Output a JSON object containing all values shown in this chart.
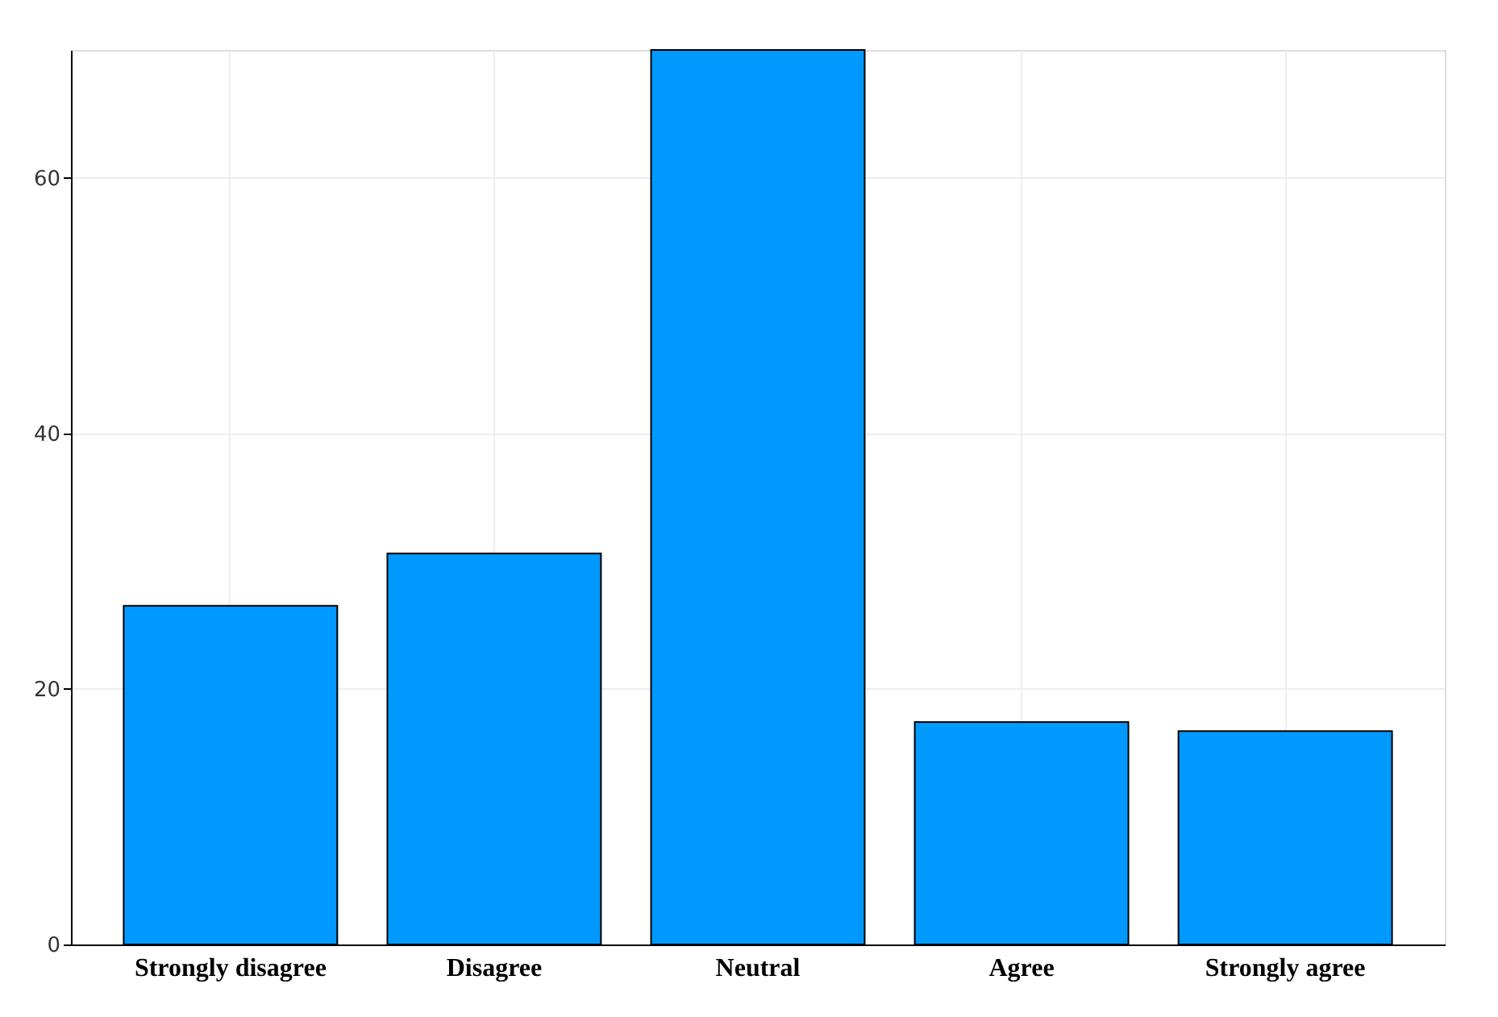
{
  "chart_data": {
    "type": "bar",
    "categories": [
      "Strongly disagree",
      "Disagree",
      "Neutral",
      "Agree",
      "Strongly agree"
    ],
    "values": [
      26.5,
      30.6,
      70,
      17.4,
      16.7
    ],
    "color": "#0099ff",
    "ylim": [
      0,
      70
    ],
    "yticks": [
      0,
      20,
      40,
      60
    ],
    "grid": true
  }
}
